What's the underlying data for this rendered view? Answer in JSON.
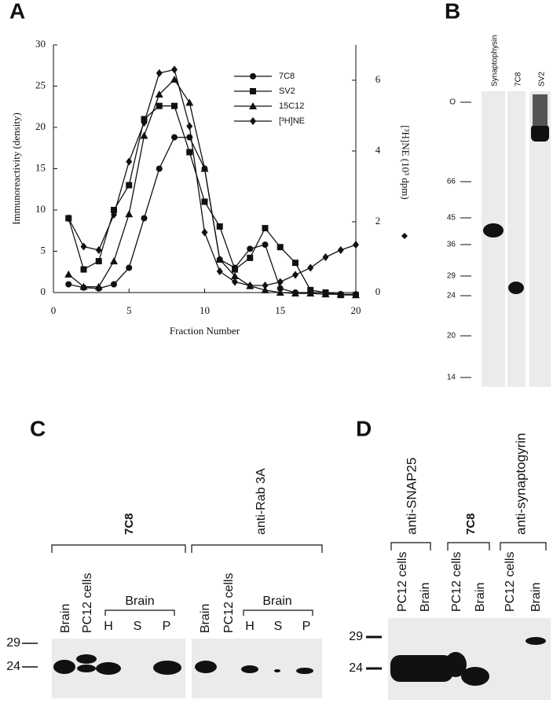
{
  "panels": {
    "a": "A",
    "b": "B",
    "c": "C",
    "d": "D"
  },
  "chart_data": {
    "type": "line",
    "x": [
      1,
      2,
      3,
      4,
      5,
      6,
      7,
      8,
      9,
      10,
      11,
      12,
      13,
      14,
      15,
      16,
      17,
      18,
      19,
      20
    ],
    "xlabel": "Fraction Number",
    "ylabel": "Immunoreactivity (density)",
    "y2label": "[³H]NE (10³ dpm)",
    "xlim": [
      0,
      20
    ],
    "xticks": [
      0,
      5,
      10,
      15,
      20
    ],
    "ylim": [
      0,
      30
    ],
    "yticks": [
      0,
      5,
      10,
      15,
      20,
      25,
      30
    ],
    "y2lim": [
      0,
      7
    ],
    "y2ticks": [
      0,
      2,
      4,
      6
    ],
    "series": [
      {
        "name": "7C8",
        "color": "#111",
        "marker": "circle",
        "values": [
          1.0,
          0.6,
          0.5,
          1.0,
          3.0,
          9.0,
          15.0,
          18.8,
          18.8,
          15.0,
          4.0,
          3.0,
          5.3,
          5.8,
          0.5,
          0,
          0,
          0,
          -0.2,
          -0.2
        ]
      },
      {
        "name": "SV2",
        "color": "#111",
        "marker": "square",
        "values": [
          9.0,
          2.8,
          3.8,
          10.0,
          13.0,
          21.0,
          22.6,
          22.6,
          17.0,
          11.0,
          8.0,
          2.8,
          4.2,
          7.8,
          5.5,
          3.6,
          0.3,
          0,
          -0.3,
          -0.3
        ]
      },
      {
        "name": "15C12",
        "color": "#111",
        "marker": "triangle",
        "values": [
          2.2,
          0.7,
          0.7,
          3.8,
          9.5,
          19.0,
          24.0,
          25.8,
          23.0,
          15.0,
          4.0,
          2.0,
          0.8,
          0.3,
          0,
          -0.1,
          -0.1,
          -0.2,
          -0.2,
          -0.3
        ]
      },
      {
        "name": "[³H]NE",
        "color": "#111",
        "marker": "diamond",
        "axis": "y2",
        "values": [
          2.1,
          1.3,
          1.2,
          2.2,
          3.7,
          4.8,
          6.2,
          6.3,
          4.7,
          1.7,
          0.6,
          0.3,
          0.2,
          0.2,
          0.3,
          0.5,
          0.7,
          1.0,
          1.2,
          1.35
        ]
      }
    ]
  },
  "panel_b": {
    "lanes": [
      "Synaptophysin",
      "7C8",
      "SV2"
    ],
    "markers": [
      "O",
      "66",
      "45",
      "36",
      "29",
      "24",
      "20",
      "14"
    ]
  },
  "panel_c": {
    "antibodies": [
      "7C8",
      "anti-Rab 3A"
    ],
    "lanes": [
      "Brain",
      "PC12 cells",
      "Brain",
      "PC12 cells"
    ],
    "group": [
      "Brain",
      "Brain"
    ],
    "fractions": [
      "H",
      "S",
      "P",
      "H",
      "S",
      "P"
    ],
    "markers": [
      "29",
      "24"
    ]
  },
  "panel_d": {
    "antibodies": [
      "anti-SNAP25",
      "7C8",
      "anti-synaptogyrin"
    ],
    "lanes": [
      "PC12 cells",
      "Brain",
      "PC12 cells",
      "Brain",
      "PC12 cells",
      "Brain"
    ],
    "markers": [
      "29",
      "24"
    ]
  }
}
